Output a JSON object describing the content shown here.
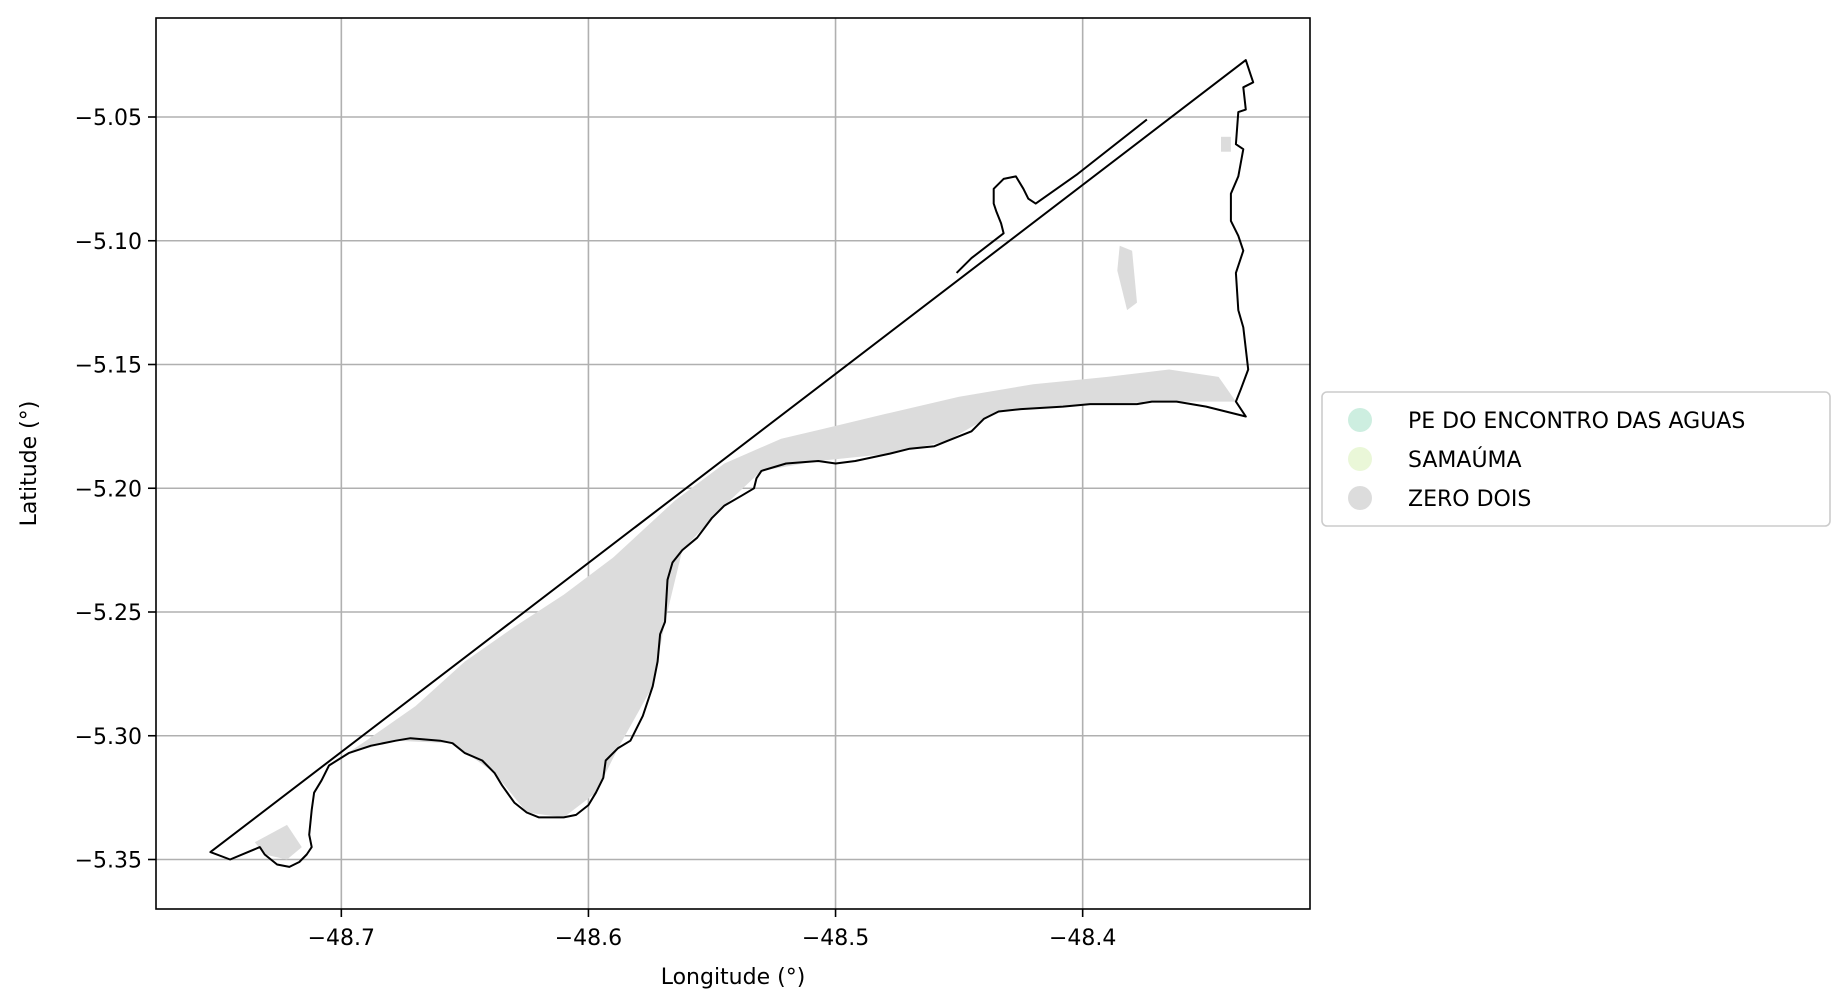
{
  "chart_data": {
    "type": "map",
    "xlabel": "Longitude (°)",
    "ylabel": "Latitude (°)",
    "xlim": [
      -48.775,
      -48.308
    ],
    "ylim": [
      -5.37,
      -5.01
    ],
    "grid": true,
    "legend_placement": "right-center",
    "x_ticks": [
      {
        "value": -48.7,
        "label": "−48.7"
      },
      {
        "value": -48.6,
        "label": "−48.6"
      },
      {
        "value": -48.5,
        "label": "−48.5"
      },
      {
        "value": -48.4,
        "label": "−48.4"
      }
    ],
    "y_ticks": [
      {
        "value": -5.05,
        "label": "−5.05"
      },
      {
        "value": -5.1,
        "label": "−5.10"
      },
      {
        "value": -5.15,
        "label": "−5.15"
      },
      {
        "value": -5.2,
        "label": "−5.20"
      },
      {
        "value": -5.25,
        "label": "−5.25"
      },
      {
        "value": -5.3,
        "label": "−5.30"
      },
      {
        "value": -5.35,
        "label": "−5.35"
      }
    ],
    "legend": [
      {
        "label": "PE DO ENCONTRO DAS AGUAS",
        "color": "#cdeee0"
      },
      {
        "label": "SAMAÚMA",
        "color": "#eaf7d8"
      },
      {
        "label": "ZERO DOIS",
        "color": "#dcdcdc"
      }
    ],
    "colors": {
      "boundary": "#000000",
      "fill": "#dcdcdc",
      "grid": "#b0b0b0"
    },
    "boundary": [
      [
        -48.753,
        -5.347
      ],
      [
        -48.334,
        -5.027
      ],
      [
        -48.332,
        -5.033
      ],
      [
        -48.331,
        -5.036
      ],
      [
        -48.335,
        -5.038
      ],
      [
        -48.334,
        -5.047
      ],
      [
        -48.337,
        -5.048
      ],
      [
        -48.338,
        -5.061
      ],
      [
        -48.335,
        -5.063
      ],
      [
        -48.337,
        -5.074
      ],
      [
        -48.34,
        -5.081
      ],
      [
        -48.34,
        -5.092
      ],
      [
        -48.337,
        -5.098
      ],
      [
        -48.335,
        -5.104
      ],
      [
        -48.338,
        -5.113
      ],
      [
        -48.337,
        -5.128
      ],
      [
        -48.335,
        -5.135
      ],
      [
        -48.333,
        -5.152
      ],
      [
        -48.336,
        -5.16
      ],
      [
        -48.338,
        -5.165
      ],
      [
        -48.334,
        -5.171
      ],
      [
        -48.35,
        -5.167
      ],
      [
        -48.362,
        -5.165
      ],
      [
        -48.372,
        -5.165
      ],
      [
        -48.378,
        -5.166
      ],
      [
        -48.387,
        -5.166
      ],
      [
        -48.397,
        -5.166
      ],
      [
        -48.408,
        -5.167
      ],
      [
        -48.425,
        -5.168
      ],
      [
        -48.434,
        -5.169
      ],
      [
        -48.44,
        -5.172
      ],
      [
        -48.445,
        -5.177
      ],
      [
        -48.455,
        -5.181
      ],
      [
        -48.46,
        -5.183
      ],
      [
        -48.47,
        -5.184
      ],
      [
        -48.478,
        -5.186
      ],
      [
        -48.492,
        -5.189
      ],
      [
        -48.5,
        -5.19
      ],
      [
        -48.507,
        -5.189
      ],
      [
        -48.52,
        -5.19
      ],
      [
        -48.53,
        -5.193
      ],
      [
        -48.532,
        -5.196
      ],
      [
        -48.533,
        -5.2
      ],
      [
        -48.538,
        -5.203
      ],
      [
        -48.545,
        -5.207
      ],
      [
        -48.55,
        -5.212
      ],
      [
        -48.556,
        -5.22
      ],
      [
        -48.562,
        -5.225
      ],
      [
        -48.566,
        -5.23
      ],
      [
        -48.568,
        -5.237
      ],
      [
        -48.569,
        -5.254
      ],
      [
        -48.571,
        -5.259
      ],
      [
        -48.572,
        -5.27
      ],
      [
        -48.574,
        -5.28
      ],
      [
        -48.578,
        -5.292
      ],
      [
        -48.583,
        -5.302
      ],
      [
        -48.588,
        -5.305
      ],
      [
        -48.593,
        -5.31
      ],
      [
        -48.594,
        -5.317
      ],
      [
        -48.597,
        -5.323
      ],
      [
        -48.6,
        -5.328
      ],
      [
        -48.605,
        -5.332
      ],
      [
        -48.61,
        -5.333
      ],
      [
        -48.62,
        -5.333
      ],
      [
        -48.625,
        -5.331
      ],
      [
        -48.63,
        -5.327
      ],
      [
        -48.635,
        -5.32
      ],
      [
        -48.638,
        -5.315
      ],
      [
        -48.643,
        -5.31
      ],
      [
        -48.65,
        -5.307
      ],
      [
        -48.655,
        -5.303
      ],
      [
        -48.66,
        -5.302
      ],
      [
        -48.672,
        -5.301
      ],
      [
        -48.678,
        -5.302
      ],
      [
        -48.688,
        -5.304
      ],
      [
        -48.697,
        -5.307
      ],
      [
        -48.705,
        -5.312
      ],
      [
        -48.708,
        -5.318
      ],
      [
        -48.711,
        -5.323
      ],
      [
        -48.712,
        -5.33
      ],
      [
        -48.713,
        -5.34
      ],
      [
        -48.712,
        -5.345
      ],
      [
        -48.714,
        -5.348
      ],
      [
        -48.717,
        -5.351
      ],
      [
        -48.721,
        -5.353
      ],
      [
        -48.726,
        -5.352
      ],
      [
        -48.731,
        -5.348
      ],
      [
        -48.733,
        -5.345
      ],
      [
        -48.745,
        -5.35
      ],
      [
        -48.753,
        -5.347
      ]
    ],
    "northwest_inset": [
      [
        -48.451,
        -5.113
      ],
      [
        -48.445,
        -5.107
      ],
      [
        -48.432,
        -5.097
      ],
      [
        -48.433,
        -5.093
      ],
      [
        -48.435,
        -5.088
      ],
      [
        -48.436,
        -5.085
      ],
      [
        -48.436,
        -5.079
      ],
      [
        -48.432,
        -5.075
      ],
      [
        -48.427,
        -5.074
      ],
      [
        -48.424,
        -5.079
      ],
      [
        -48.422,
        -5.083
      ],
      [
        -48.419,
        -5.085
      ],
      [
        -48.402,
        -5.073
      ],
      [
        -48.374,
        -5.051
      ]
    ]
  }
}
